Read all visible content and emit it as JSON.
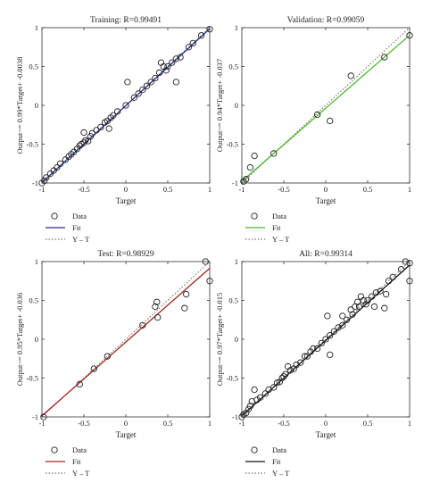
{
  "chart_data": [
    {
      "type": "scatter",
      "title": "Training: R=0.99491",
      "xlabel": "Target",
      "ylabel": "Output~= 0.99*Target+ -0.0038",
      "xlim": [
        -1,
        1
      ],
      "ylim": [
        -1,
        1
      ],
      "xticks": [
        "-1",
        "-0.5",
        "0",
        "0.5",
        "1"
      ],
      "yticks": [
        "-1",
        "-0.5",
        "0",
        "0.5",
        "1"
      ],
      "grid": false,
      "fit": {
        "slope": 0.99,
        "intercept": -0.0038,
        "color": "#1f2a8c"
      },
      "legend": {
        "position": "bottom-left",
        "entries": [
          "Data",
          "Fit",
          "Y – T"
        ]
      },
      "series": [
        {
          "name": "Data",
          "points": [
            [
              -1,
              -1
            ],
            [
              -0.97,
              -0.97
            ],
            [
              -0.95,
              -0.93
            ],
            [
              -0.9,
              -0.88
            ],
            [
              -0.86,
              -0.84
            ],
            [
              -0.82,
              -0.8
            ],
            [
              -0.78,
              -0.75
            ],
            [
              -0.72,
              -0.7
            ],
            [
              -0.68,
              -0.66
            ],
            [
              -0.65,
              -0.63
            ],
            [
              -0.62,
              -0.6
            ],
            [
              -0.58,
              -0.56
            ],
            [
              -0.55,
              -0.52
            ],
            [
              -0.53,
              -0.5
            ],
            [
              -0.5,
              -0.48
            ],
            [
              -0.48,
              -0.45
            ],
            [
              -0.45,
              -0.46
            ],
            [
              -0.42,
              -0.4
            ],
            [
              -0.4,
              -0.36
            ],
            [
              -0.35,
              -0.32
            ],
            [
              -0.3,
              -0.28
            ],
            [
              -0.25,
              -0.22
            ],
            [
              -0.22,
              -0.2
            ],
            [
              -0.18,
              -0.16
            ],
            [
              -0.15,
              -0.13
            ],
            [
              -0.5,
              -0.35
            ],
            [
              -0.2,
              -0.3
            ],
            [
              -0.1,
              -0.08
            ],
            [
              0.0,
              0.0
            ],
            [
              0.02,
              0.3
            ],
            [
              0.1,
              0.1
            ],
            [
              0.15,
              0.15
            ],
            [
              0.2,
              0.2
            ],
            [
              0.25,
              0.25
            ],
            [
              0.3,
              0.3
            ],
            [
              0.35,
              0.35
            ],
            [
              0.4,
              0.42
            ],
            [
              0.45,
              0.5
            ],
            [
              0.48,
              0.45
            ],
            [
              0.5,
              0.5
            ],
            [
              0.55,
              0.55
            ],
            [
              0.6,
              0.3
            ],
            [
              0.6,
              0.6
            ],
            [
              0.65,
              0.62
            ],
            [
              0.75,
              0.75
            ],
            [
              0.8,
              0.8
            ],
            [
              0.9,
              0.9
            ],
            [
              1,
              0.98
            ],
            [
              0.42,
              0.55
            ]
          ]
        }
      ]
    },
    {
      "type": "scatter",
      "title": "Validation: R=0.99059",
      "xlabel": "Target",
      "ylabel": "Output~= 0.94*Target+ -0.037",
      "xlim": [
        -1,
        1
      ],
      "ylim": [
        -1,
        1
      ],
      "xticks": [
        "-1",
        "-0.5",
        "0",
        "0.5",
        "1"
      ],
      "yticks": [
        "-1",
        "-0.5",
        "0",
        "0.5",
        "1"
      ],
      "grid": false,
      "fit": {
        "slope": 0.94,
        "intercept": -0.037,
        "color": "#4cb82a"
      },
      "legend": {
        "position": "bottom-left",
        "entries": [
          "Data",
          "Fit",
          "Y – T"
        ]
      },
      "series": [
        {
          "name": "Data",
          "points": [
            [
              -0.98,
              -0.98
            ],
            [
              -0.95,
              -0.95
            ],
            [
              -0.9,
              -0.8
            ],
            [
              -0.85,
              -0.65
            ],
            [
              -0.62,
              -0.62
            ],
            [
              -0.1,
              -0.12
            ],
            [
              0.05,
              -0.2
            ],
            [
              0.3,
              0.38
            ],
            [
              0.7,
              0.62
            ],
            [
              1,
              0.9
            ]
          ]
        }
      ]
    },
    {
      "type": "scatter",
      "title": "Test: R=0.98929",
      "xlabel": "Target",
      "ylabel": "Output~= 0.95*Target+ -0.036",
      "xlim": [
        -1,
        1
      ],
      "ylim": [
        -1,
        1
      ],
      "xticks": [
        "-1",
        "-0.5",
        "0",
        "0.5",
        "1"
      ],
      "yticks": [
        "-1",
        "-0.5",
        "0",
        "0.5",
        "1"
      ],
      "grid": false,
      "fit": {
        "slope": 0.95,
        "intercept": -0.036,
        "color": "#a3231b"
      },
      "legend": {
        "position": "bottom-left",
        "entries": [
          "Data",
          "Fit",
          "Y – T"
        ]
      },
      "series": [
        {
          "name": "Data",
          "points": [
            [
              -0.98,
              -1
            ],
            [
              -0.55,
              -0.58
            ],
            [
              -0.38,
              -0.38
            ],
            [
              -0.22,
              -0.22
            ],
            [
              0.2,
              0.18
            ],
            [
              0.35,
              0.42
            ],
            [
              0.37,
              0.48
            ],
            [
              0.38,
              0.28
            ],
            [
              0.7,
              0.4
            ],
            [
              0.72,
              0.58
            ],
            [
              0.95,
              1
            ],
            [
              1,
              0.75
            ]
          ]
        }
      ]
    },
    {
      "type": "scatter",
      "title": "All: R=0.99314",
      "xlabel": "Target",
      "ylabel": "Output~= 0.97*Target+ -0.015",
      "xlim": [
        -1,
        1
      ],
      "ylim": [
        -1,
        1
      ],
      "xticks": [
        "-1",
        "-0.5",
        "0",
        "0.5",
        "1"
      ],
      "yticks": [
        "-1",
        "-0.5",
        "0",
        "0.5",
        "1"
      ],
      "grid": false,
      "fit": {
        "slope": 0.97,
        "intercept": -0.015,
        "color": "#111111"
      },
      "legend": {
        "position": "bottom-left",
        "entries": [
          "Data",
          "Fit",
          "Y – T"
        ]
      },
      "series": [
        {
          "name": "Data",
          "points": [
            [
              -1,
              -1
            ],
            [
              -0.98,
              -0.97
            ],
            [
              -0.95,
              -0.95
            ],
            [
              -0.92,
              -0.9
            ],
            [
              -0.9,
              -0.86
            ],
            [
              -0.88,
              -0.8
            ],
            [
              -0.85,
              -0.65
            ],
            [
              -0.82,
              -0.78
            ],
            [
              -0.78,
              -0.75
            ],
            [
              -0.72,
              -0.7
            ],
            [
              -0.68,
              -0.65
            ],
            [
              -0.62,
              -0.62
            ],
            [
              -0.58,
              -0.56
            ],
            [
              -0.55,
              -0.55
            ],
            [
              -0.52,
              -0.5
            ],
            [
              -0.5,
              -0.48
            ],
            [
              -0.48,
              -0.45
            ],
            [
              -0.45,
              -0.35
            ],
            [
              -0.42,
              -0.4
            ],
            [
              -0.38,
              -0.38
            ],
            [
              -0.35,
              -0.33
            ],
            [
              -0.3,
              -0.3
            ],
            [
              -0.25,
              -0.22
            ],
            [
              -0.22,
              -0.22
            ],
            [
              -0.18,
              -0.16
            ],
            [
              -0.15,
              -0.12
            ],
            [
              -0.1,
              -0.12
            ],
            [
              -0.05,
              -0.05
            ],
            [
              0,
              0
            ],
            [
              0.05,
              -0.2
            ],
            [
              0.05,
              0.05
            ],
            [
              0.1,
              0.1
            ],
            [
              0.15,
              0.15
            ],
            [
              0.2,
              0.18
            ],
            [
              0.2,
              0.3
            ],
            [
              0.25,
              0.25
            ],
            [
              0.3,
              0.38
            ],
            [
              0.32,
              0.32
            ],
            [
              0.35,
              0.42
            ],
            [
              0.38,
              0.48
            ],
            [
              0.4,
              0.42
            ],
            [
              0.42,
              0.55
            ],
            [
              0.45,
              0.5
            ],
            [
              0.48,
              0.45
            ],
            [
              0.5,
              0.5
            ],
            [
              0.55,
              0.55
            ],
            [
              0.58,
              0.42
            ],
            [
              0.6,
              0.6
            ],
            [
              0.65,
              0.62
            ],
            [
              0.7,
              0.4
            ],
            [
              0.72,
              0.58
            ],
            [
              0.75,
              0.75
            ],
            [
              0.8,
              0.8
            ],
            [
              0.9,
              0.9
            ],
            [
              0.95,
              1
            ],
            [
              1,
              0.98
            ],
            [
              1,
              0.75
            ],
            [
              0.02,
              0.3
            ]
          ]
        }
      ]
    }
  ],
  "identity_line_color": "#555555"
}
